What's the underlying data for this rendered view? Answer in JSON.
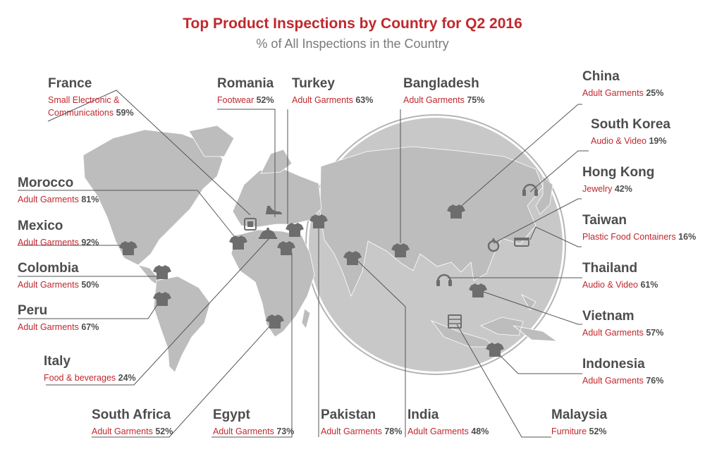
{
  "header": {
    "title": "Top Product Inspections by Country for Q2 2016",
    "subtitle": "% of All Inspections in the Country"
  },
  "colors": {
    "accent": "#c1272d",
    "land": "#bdbdbd",
    "globe": "#c8c8c8",
    "icon": "#6d6d6d"
  },
  "chart_data": {
    "type": "table",
    "columns": [
      "country",
      "category",
      "value"
    ],
    "rows": [
      {
        "country": "France",
        "category": "Small Electronic & Communications",
        "category_lines": [
          "Small Electronic &",
          "Communications"
        ],
        "value": 59,
        "pct": "59%",
        "icon": "electronics-icon"
      },
      {
        "country": "Romania",
        "category": "Footwear",
        "value": 52,
        "pct": "52%",
        "icon": "shoe-icon"
      },
      {
        "country": "Turkey",
        "category": "Adult Garments",
        "value": 63,
        "pct": "63%",
        "icon": "tshirt-icon"
      },
      {
        "country": "Bangladesh",
        "category": "Adult Garments",
        "value": 75,
        "pct": "75%",
        "icon": "tshirt-icon"
      },
      {
        "country": "China",
        "category": "Adult Garments",
        "value": 25,
        "pct": "25%",
        "icon": "tshirt-icon"
      },
      {
        "country": "South Korea",
        "category": "Audio & Video",
        "value": 19,
        "pct": "19%",
        "icon": "headphones-icon"
      },
      {
        "country": "Hong Kong",
        "category": "Jewelry",
        "value": 42,
        "pct": "42%",
        "icon": "ring-icon"
      },
      {
        "country": "Taiwan",
        "category": "Plastic Food Containers",
        "value": 16,
        "pct": "16%",
        "icon": "food-container-icon"
      },
      {
        "country": "Morocco",
        "category": "Adult Garments",
        "value": 81,
        "pct": "81%",
        "icon": "tshirt-icon"
      },
      {
        "country": "Mexico",
        "category": "Adult Garments",
        "value": 92,
        "pct": "92%",
        "icon": "tshirt-icon"
      },
      {
        "country": "Colombia",
        "category": "Adult Garments",
        "value": 50,
        "pct": "50%",
        "icon": "tshirt-icon"
      },
      {
        "country": "Peru",
        "category": "Adult Garments",
        "value": 67,
        "pct": "67%",
        "icon": "tshirt-icon"
      },
      {
        "country": "Italy",
        "category": "Food & beverages",
        "value": 24,
        "pct": "24%",
        "icon": "food-cloche-icon"
      },
      {
        "country": "South Africa",
        "category": "Adult Garments",
        "value": 52,
        "pct": "52%",
        "icon": "tshirt-icon"
      },
      {
        "country": "Egypt",
        "category": "Adult Garments",
        "value": 73,
        "pct": "73%",
        "icon": "tshirt-icon"
      },
      {
        "country": "Pakistan",
        "category": "Adult Garments",
        "value": 78,
        "pct": "78%",
        "icon": "tshirt-icon"
      },
      {
        "country": "India",
        "category": "Adult Garments",
        "value": 48,
        "pct": "48%",
        "icon": "tshirt-icon"
      },
      {
        "country": "Thailand",
        "category": "Audio & Video",
        "value": 61,
        "pct": "61%",
        "icon": "headphones-icon"
      },
      {
        "country": "Vietnam",
        "category": "Adult Garments",
        "value": 57,
        "pct": "57%",
        "icon": "tshirt-icon"
      },
      {
        "country": "Indonesia",
        "category": "Adult Garments",
        "value": 76,
        "pct": "76%",
        "icon": "tshirt-icon"
      },
      {
        "country": "Malaysia",
        "category": "Furniture",
        "value": 52,
        "pct": "52%",
        "icon": "furniture-icon"
      }
    ]
  }
}
